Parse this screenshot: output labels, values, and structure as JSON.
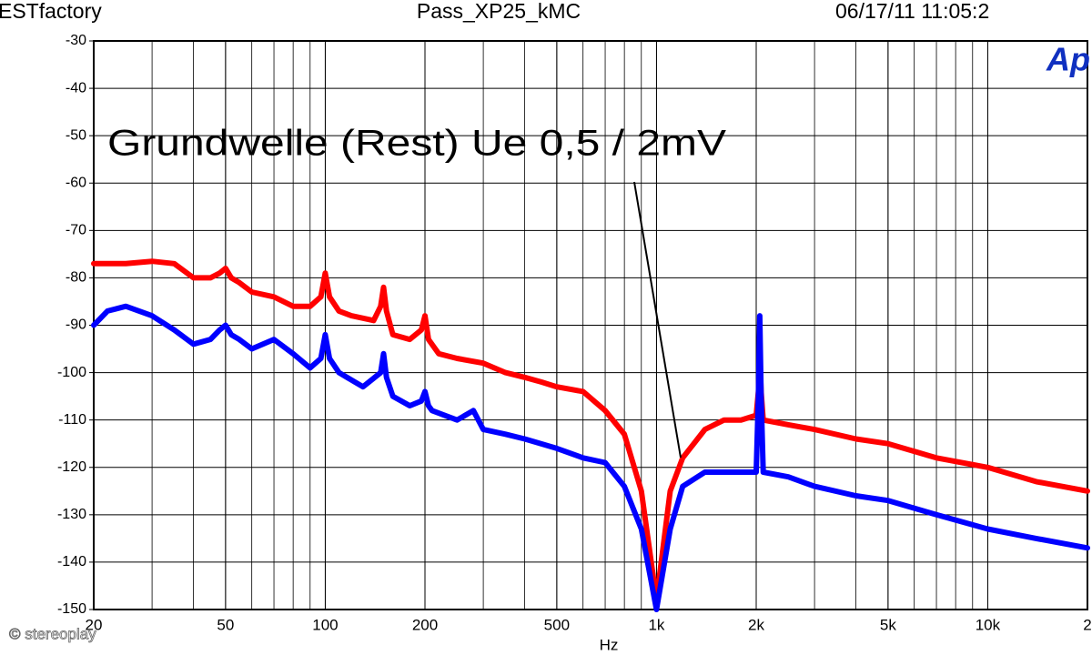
{
  "header": {
    "left": "ESTfactory",
    "center": "Pass_XP25_kMC",
    "right": "06/17/11 11:05:2",
    "logo": "Ap"
  },
  "watermark": "© stereoplay",
  "chart_data": {
    "type": "line",
    "annotation": "Grundwelle (Rest)  Ue  0,5 / 2mV",
    "x_label": "Hz",
    "x_log": true,
    "grid": true,
    "xlim": [
      20,
      20000
    ],
    "ylim": [
      -150,
      -30
    ],
    "xticks": [
      20,
      50,
      100,
      200,
      500,
      {
        "value": 1000,
        "label": "1k"
      },
      {
        "value": 2000,
        "label": "2k"
      },
      {
        "value": 5000,
        "label": "5k"
      },
      {
        "value": 10000,
        "label": "10k"
      },
      {
        "value": 20000,
        "label": "2"
      }
    ],
    "yticks": [
      -30,
      -40,
      -50,
      -60,
      -70,
      -80,
      -90,
      -100,
      -110,
      -120,
      -130,
      -140,
      -150
    ],
    "series": [
      {
        "color": "#ff0000",
        "x": [
          20,
          25,
          30,
          35,
          40,
          45,
          48,
          50,
          52,
          55,
          60,
          70,
          80,
          90,
          97,
          100,
          103,
          110,
          120,
          140,
          147,
          150,
          153,
          160,
          180,
          195,
          200,
          205,
          220,
          250,
          300,
          350,
          400,
          450,
          500,
          600,
          700,
          800,
          900,
          1000,
          1100,
          1200,
          1400,
          1600,
          1800,
          2000,
          2030,
          2050,
          2070,
          2100,
          2500,
          3000,
          4000,
          5000,
          7000,
          10000,
          14000,
          20000
        ],
        "values": [
          -77,
          -77,
          -76.5,
          -77,
          -80,
          -80,
          -79,
          -78,
          -80,
          -81,
          -83,
          -84,
          -86,
          -86,
          -84,
          -79,
          -84,
          -87,
          -88,
          -89,
          -86,
          -82,
          -87,
          -92,
          -93,
          -91,
          -88,
          -93,
          -96,
          -97,
          -98,
          -100,
          -101,
          -102,
          -103,
          -104,
          -108,
          -113,
          -125,
          -148,
          -125,
          -118,
          -112,
          -110,
          -110,
          -109,
          -104,
          -97,
          -104,
          -110,
          -111,
          -112,
          -114,
          -115,
          -118,
          -120,
          -123,
          -125
        ]
      },
      {
        "color": "#0000ff",
        "x": [
          20,
          22,
          25,
          30,
          35,
          40,
          45,
          48,
          50,
          52,
          55,
          60,
          70,
          80,
          90,
          97,
          100,
          103,
          110,
          130,
          147,
          150,
          153,
          160,
          180,
          195,
          200,
          205,
          210,
          250,
          280,
          300,
          350,
          400,
          500,
          600,
          700,
          800,
          900,
          1000,
          1100,
          1200,
          1400,
          1800,
          2000,
          2030,
          2050,
          2070,
          2100,
          2500,
          3000,
          4000,
          5000,
          7000,
          10000,
          14000,
          20000
        ],
        "values": [
          -90,
          -87,
          -86,
          -88,
          -91,
          -94,
          -93,
          -91,
          -90,
          -92,
          -93,
          -95,
          -93,
          -96,
          -99,
          -97,
          -92,
          -97,
          -100,
          -103,
          -100,
          -96,
          -101,
          -105,
          -107,
          -106,
          -104,
          -107,
          -108,
          -110,
          -108,
          -112,
          -113,
          -114,
          -116,
          -118,
          -119,
          -124,
          -133,
          -150,
          -133,
          -124,
          -121,
          -121,
          -121,
          -105,
          -88,
          -105,
          -121,
          -122,
          -124,
          -126,
          -127,
          -130,
          -133,
          -135,
          -137
        ]
      }
    ]
  }
}
